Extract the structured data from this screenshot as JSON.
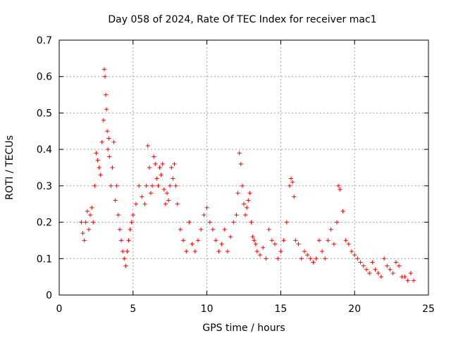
{
  "chart_data": {
    "type": "scatter",
    "title": "Day 058 of 2024, Rate Of TEC Index for receiver mac1",
    "xlabel": "GPS time / hours",
    "ylabel": "ROTI / TECUs",
    "xlim": [
      0,
      25
    ],
    "ylim": [
      0,
      0.7
    ],
    "x_ticks": [
      0,
      5,
      10,
      15,
      20,
      25
    ],
    "y_ticks": [
      0,
      0.1,
      0.2,
      0.3,
      0.4,
      0.5,
      0.6,
      0.7
    ],
    "x_tick_labels": [
      "0",
      "5",
      "10",
      "15",
      "20",
      "25"
    ],
    "y_tick_labels": [
      "0",
      "0.1",
      "0.2",
      "0.3",
      "0.4",
      "0.5",
      "0.6",
      "0.7"
    ],
    "grid": true,
    "marker": "+",
    "series_color": "#ff0000",
    "series": [
      {
        "name": "ROTI",
        "x": [
          1.5,
          1.6,
          1.7,
          1.8,
          1.9,
          2.0,
          2.1,
          2.2,
          2.3,
          2.4,
          2.5,
          2.6,
          2.7,
          2.8,
          2.9,
          3.0,
          3.05,
          3.1,
          3.15,
          3.2,
          3.25,
          3.3,
          3.35,
          3.4,
          3.5,
          3.6,
          3.7,
          3.8,
          3.9,
          4.0,
          4.1,
          4.2,
          4.3,
          4.4,
          4.5,
          4.6,
          4.7,
          4.8,
          4.9,
          5.0,
          5.2,
          5.4,
          5.6,
          5.8,
          5.9,
          6.0,
          6.1,
          6.2,
          6.3,
          6.4,
          6.5,
          6.6,
          6.7,
          6.8,
          6.9,
          7.0,
          7.1,
          7.2,
          7.3,
          7.4,
          7.5,
          7.6,
          7.7,
          7.8,
          7.9,
          8.0,
          8.2,
          8.4,
          8.6,
          8.8,
          9.0,
          9.2,
          9.4,
          9.6,
          9.8,
          10.0,
          10.2,
          10.4,
          10.6,
          10.8,
          11.0,
          11.2,
          11.4,
          11.6,
          11.8,
          12.0,
          12.1,
          12.2,
          12.3,
          12.4,
          12.5,
          12.6,
          12.7,
          12.8,
          12.9,
          13.0,
          13.1,
          13.2,
          13.3,
          13.4,
          13.6,
          13.8,
          14.0,
          14.2,
          14.4,
          14.6,
          14.8,
          15.0,
          15.2,
          15.4,
          15.6,
          15.7,
          15.8,
          15.9,
          16.0,
          16.2,
          16.4,
          16.6,
          16.8,
          17.0,
          17.2,
          17.4,
          17.6,
          17.8,
          18.0,
          18.2,
          18.4,
          18.6,
          18.8,
          18.9,
          19.0,
          19.2,
          19.4,
          19.6,
          19.8,
          20.0,
          20.2,
          20.4,
          20.6,
          20.8,
          21.0,
          21.2,
          21.4,
          21.6,
          21.8,
          22.0,
          22.2,
          22.4,
          22.6,
          22.8,
          23.0,
          23.2,
          23.4,
          23.6,
          23.8,
          24.0
        ],
        "values": [
          0.2,
          0.17,
          0.15,
          0.2,
          0.23,
          0.18,
          0.22,
          0.24,
          0.2,
          0.3,
          0.39,
          0.37,
          0.35,
          0.33,
          0.42,
          0.48,
          0.62,
          0.6,
          0.55,
          0.51,
          0.45,
          0.4,
          0.43,
          0.38,
          0.3,
          0.35,
          0.42,
          0.26,
          0.3,
          0.22,
          0.18,
          0.15,
          0.12,
          0.1,
          0.08,
          0.12,
          0.15,
          0.18,
          0.2,
          0.22,
          0.25,
          0.3,
          0.27,
          0.25,
          0.3,
          0.41,
          0.35,
          0.28,
          0.3,
          0.38,
          0.36,
          0.32,
          0.3,
          0.35,
          0.33,
          0.36,
          0.29,
          0.25,
          0.28,
          0.26,
          0.3,
          0.35,
          0.32,
          0.36,
          0.3,
          0.25,
          0.18,
          0.15,
          0.12,
          0.2,
          0.14,
          0.12,
          0.15,
          0.18,
          0.22,
          0.24,
          0.2,
          0.18,
          0.15,
          0.12,
          0.14,
          0.18,
          0.12,
          0.16,
          0.2,
          0.22,
          0.28,
          0.39,
          0.36,
          0.3,
          0.25,
          0.22,
          0.24,
          0.26,
          0.28,
          0.2,
          0.16,
          0.15,
          0.14,
          0.12,
          0.11,
          0.13,
          0.1,
          0.18,
          0.15,
          0.14,
          0.1,
          0.12,
          0.15,
          0.2,
          0.3,
          0.32,
          0.31,
          0.27,
          0.15,
          0.14,
          0.1,
          0.12,
          0.11,
          0.1,
          0.09,
          0.1,
          0.15,
          0.12,
          0.1,
          0.15,
          0.18,
          0.14,
          0.2,
          0.3,
          0.29,
          0.23,
          0.15,
          0.14,
          0.12,
          0.11,
          0.1,
          0.09,
          0.08,
          0.07,
          0.06,
          0.09,
          0.07,
          0.06,
          0.05,
          0.1,
          0.08,
          0.07,
          0.06,
          0.09,
          0.08,
          0.05,
          0.05,
          0.04,
          0.06,
          0.04
        ]
      }
    ]
  }
}
